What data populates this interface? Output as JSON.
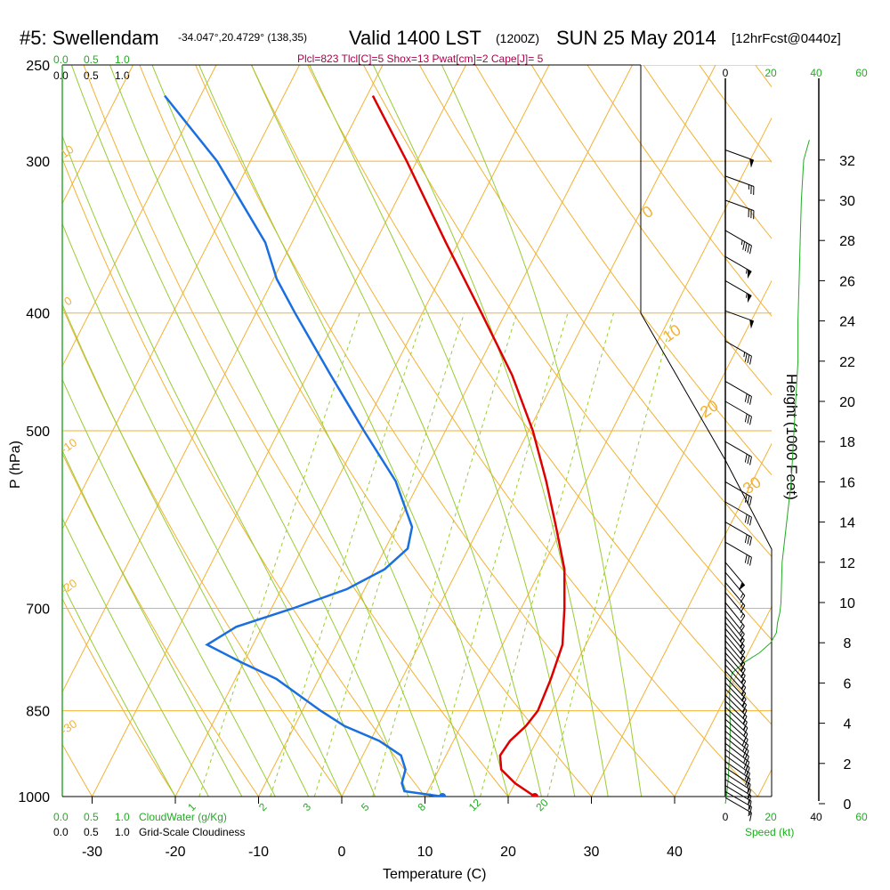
{
  "header": {
    "title": "#5: Swellendam",
    "coords": "-34.047°,20.4729° (138,35)",
    "valid": "Valid 1400 LST",
    "zulu": "(1200Z)",
    "date": "SUN 25 May 2014",
    "fcst": "[12hrFcst@0440z]",
    "indices": "Plcl=823 Tlcl[C]=5 Shox=13 Pwat[cm]=2 Cape[J]= 5"
  },
  "legend": {
    "cloudwater_ticks": [
      "0.0",
      "0.5",
      "1.0"
    ],
    "cloudwater_label": "CloudWater (g/Kg)",
    "cloudiness_ticks": [
      "0.0",
      "0.5",
      "1.0"
    ],
    "cloudiness_label": "Grid-Scale Cloudiness",
    "speed_label": "Speed (kt)"
  },
  "colors": {
    "isotherm": "#f2b233",
    "dry_adiabat": "#f2b233",
    "moist_adiabat": "#99cc33",
    "mixing_ratio": "#99cc33",
    "temperature": "#dd0000",
    "dewpoint": "#1a6fe0",
    "cloud": "#22aa22"
  },
  "chart_data": {
    "type": "skew-t",
    "xlabel": "Temperature (C)",
    "ylabel": "P (hPa)",
    "right_ylabel": "Height (1000 Feet)",
    "temp_ticks": [
      -30,
      -20,
      -10,
      0,
      10,
      20,
      30,
      40
    ],
    "pressure_ticks": [
      250,
      300,
      400,
      500,
      700,
      850,
      1000
    ],
    "height_ticks": [
      0,
      2,
      4,
      6,
      8,
      10,
      12,
      14,
      16,
      18,
      20,
      22,
      24,
      26,
      28,
      30,
      32
    ],
    "speed_ticks": [
      0,
      20,
      40,
      60
    ],
    "isotherm_labels": [
      "10",
      "0",
      "-10",
      "-20",
      "-30",
      "0",
      "10",
      "20",
      "30"
    ],
    "mixing_ratio_labels": [
      "1",
      "2",
      "3",
      "5",
      "8",
      "12",
      "20"
    ],
    "temperature": {
      "p": [
        1000,
        975,
        950,
        925,
        900,
        875,
        850,
        800,
        750,
        700,
        650,
        600,
        550,
        500,
        450,
        400,
        350,
        300,
        265
      ],
      "t": [
        23.2,
        20,
        17.5,
        16.5,
        16.8,
        17.8,
        18.3,
        17.9,
        17.2,
        15.2,
        12.8,
        9.2,
        5.2,
        0.5,
        -5.4,
        -12.9,
        -21.5,
        -31.2,
        -39.3
      ]
    },
    "dewpoint": {
      "p": [
        1000,
        990,
        975,
        950,
        925,
        900,
        875,
        850,
        800,
        775,
        750,
        725,
        700,
        675,
        650,
        625,
        600,
        550,
        500,
        450,
        400,
        375,
        350,
        300,
        265
      ],
      "td": [
        12.1,
        7.2,
        6.4,
        6.0,
        4.6,
        1.1,
        -4.0,
        -7.8,
        -15.1,
        -20.4,
        -25.5,
        -23.1,
        -17.4,
        -12.1,
        -8.8,
        -7.3,
        -8.1,
        -12.9,
        -19.8,
        -27.2,
        -35.3,
        -39.6,
        -43.2,
        -54,
        -64.3
      ]
    },
    "surface_dewpoint": 12.1,
    "wind": {
      "height_kft": [
        0.3,
        0.6,
        0.9,
        1.2,
        1.5,
        1.8,
        2.1,
        2.4,
        2.7,
        3.0,
        3.3,
        3.6,
        3.9,
        4.2,
        4.5,
        4.8,
        5.1,
        5.4,
        5.7,
        6.0,
        6.3,
        6.6,
        6.9,
        7.2,
        7.5,
        7.8,
        8.1,
        8.4,
        8.7,
        9.0,
        9.3,
        9.6,
        10.0,
        10.5,
        11.0,
        11.5,
        12.0,
        13.0,
        14.0,
        15.0,
        16.0,
        18.0,
        20.0,
        21.0,
        23.0,
        24.5,
        26.0,
        27.2,
        28.5,
        30.0,
        31.2,
        32.5
      ],
      "dir": [
        300,
        300,
        301,
        302,
        303,
        304,
        305,
        306,
        307,
        308,
        309,
        310,
        311,
        312,
        313,
        313,
        314,
        315,
        315,
        316,
        317,
        318,
        318,
        318,
        319,
        319,
        320,
        320,
        320,
        321,
        321,
        321,
        321,
        320,
        320,
        320,
        320,
        300,
        300,
        300,
        300,
        300,
        300,
        300,
        300,
        290,
        300,
        300,
        300,
        290,
        290,
        290
      ],
      "speed_kt": [
        16,
        16,
        17,
        18,
        18,
        19,
        20,
        20,
        20,
        20,
        20,
        20,
        20,
        20,
        19,
        19,
        19,
        19,
        18,
        18,
        18,
        17,
        17,
        17,
        17,
        16,
        16,
        16,
        16,
        15,
        15,
        15,
        15,
        15,
        15,
        15,
        50,
        30,
        30,
        30,
        30,
        30,
        30,
        30,
        35,
        50,
        55,
        55,
        45,
        30,
        25,
        50
      ]
    },
    "cloud_profile": {
      "height_kft": [
        0,
        0.4,
        0.8,
        1.2,
        1.6,
        2.0,
        2.5,
        3.0,
        3.5,
        4.0,
        4.5,
        5.0,
        5.5,
        6.0,
        6.5,
        7.0,
        7.5,
        8.0,
        8.5,
        9.0,
        9.5,
        10,
        12,
        14,
        16,
        18,
        20,
        22,
        24,
        26,
        28,
        30,
        32,
        33
      ],
      "speed_kt": [
        0,
        0.5,
        0.9,
        1.2,
        1.4,
        1.6,
        1.8,
        2.0,
        2.1,
        2.1,
        2.0,
        1.9,
        1.9,
        2.0,
        3.0,
        8,
        15,
        20,
        22.5,
        23,
        24,
        24.5,
        25,
        27,
        29,
        30,
        31,
        32,
        32,
        32.5,
        33,
        33.5,
        34.5,
        37
      ]
    }
  }
}
